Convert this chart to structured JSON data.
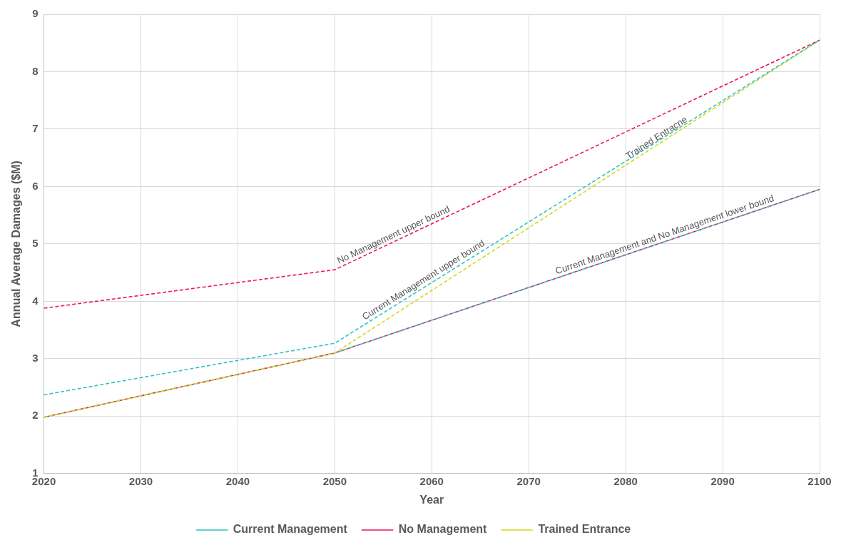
{
  "chart_data": {
    "type": "line",
    "xlabel": "Year",
    "ylabel": "Annual Average Damages ($M)",
    "x": [
      2020,
      2050,
      2100
    ],
    "series": [
      {
        "name": "Current Management",
        "color": "#2ec4c0",
        "values": [
          2.37,
          3.27,
          8.55
        ]
      },
      {
        "name": "No Management",
        "color": "#f0145a",
        "values": [
          3.88,
          4.55,
          8.55
        ]
      },
      {
        "name": "Trained Entrance",
        "color": "#d4d81c",
        "values": [
          1.98,
          3.1,
          8.55
        ]
      },
      {
        "color": "#2ec4c0",
        "values": [
          1.98,
          3.1,
          5.95
        ]
      },
      {
        "color": "#f0145a",
        "values": [
          1.98,
          3.1,
          5.95
        ]
      }
    ],
    "xlim": [
      2020,
      2100
    ],
    "xticks": [
      2020,
      2030,
      2040,
      2050,
      2060,
      2070,
      2080,
      2090,
      2100
    ],
    "ylim": [
      1,
      9
    ],
    "yticks": [
      1,
      2,
      3,
      4,
      5,
      6,
      7,
      8,
      9
    ],
    "grid": true,
    "legend": "bottom",
    "line_style": "dashed",
    "marker": "none",
    "annotations": [
      {
        "text": "No Management upper bound",
        "x": 2050.4,
        "y": 4.58
      },
      {
        "text": "Current Management upper bound",
        "x": 2053.1,
        "y": 3.6
      },
      {
        "text": "Trained Entracne",
        "x": 2080.3,
        "y": 6.4
      },
      {
        "text": "Current Management and No Management lower bound",
        "x": 2072.8,
        "y": 4.4
      }
    ]
  }
}
